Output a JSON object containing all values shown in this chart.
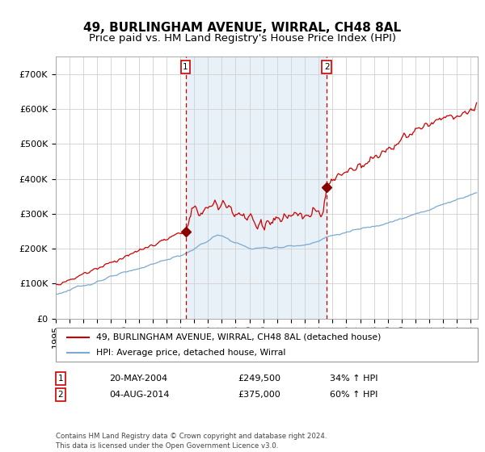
{
  "title1": "49, BURLINGHAM AVENUE, WIRRAL, CH48 8AL",
  "title2": "Price paid vs. HM Land Registry's House Price Index (HPI)",
  "ytick_vals": [
    0,
    100000,
    200000,
    300000,
    400000,
    500000,
    600000,
    700000
  ],
  "ylim": [
    0,
    750000
  ],
  "xlim_start": 1995.0,
  "xlim_end": 2025.5,
  "sale1_x": 2004.38,
  "sale1_y": 249500,
  "sale1_date": "20-MAY-2004",
  "sale1_price": "£249,500",
  "sale1_hpi": "34% ↑ HPI",
  "sale2_x": 2014.58,
  "sale2_y": 375000,
  "sale2_date": "04-AUG-2014",
  "sale2_price": "£375,000",
  "sale2_hpi": "60% ↑ HPI",
  "red_line_color": "#cc0000",
  "blue_line_color": "#7aaad0",
  "shade_color": "#e8f0f8",
  "vline_color": "#cc0000",
  "marker_color": "#880000",
  "grid_color": "#d0d0d0",
  "bg_color": "#ffffff",
  "legend1": "49, BURLINGHAM AVENUE, WIRRAL, CH48 8AL (detached house)",
  "legend2": "HPI: Average price, detached house, Wirral",
  "footnote": "Contains HM Land Registry data © Crown copyright and database right 2024.\nThis data is licensed under the Open Government Licence v3.0.",
  "title1_fontsize": 11,
  "title2_fontsize": 9.5,
  "axis_fontsize": 8
}
